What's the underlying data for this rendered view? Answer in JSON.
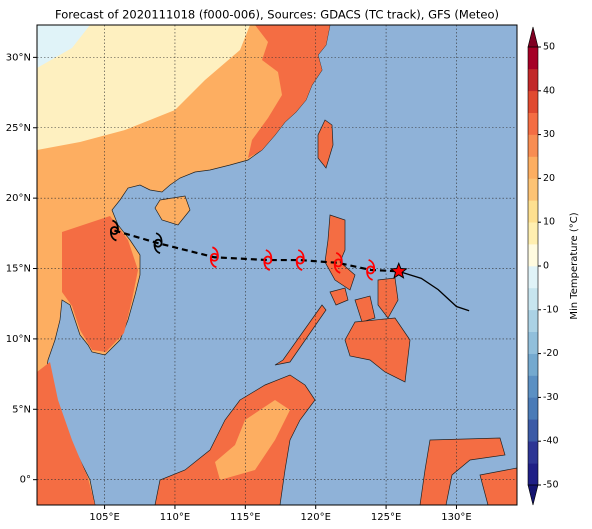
{
  "map": {
    "title": "Forecast of 2020111018 (f000-006), Sources: GDACS (TC track), GFS (Meteo)",
    "xlim": [
      100.2,
      134.3
    ],
    "ylim": [
      -1.8,
      32.3
    ],
    "xticks": [
      {
        "value": 105,
        "label": "105°E"
      },
      {
        "value": 110,
        "label": "110°E"
      },
      {
        "value": 115,
        "label": "115°E"
      },
      {
        "value": 120,
        "label": "120°E"
      },
      {
        "value": 125,
        "label": "125°E"
      },
      {
        "value": 130,
        "label": "130°E"
      }
    ],
    "yticks": [
      {
        "value": 0,
        "label": "0°"
      },
      {
        "value": 5,
        "label": "5°N"
      },
      {
        "value": 10,
        "label": "10°N"
      },
      {
        "value": 15,
        "label": "15°N"
      },
      {
        "value": 20,
        "label": "20°N"
      },
      {
        "value": 25,
        "label": "25°N"
      },
      {
        "value": 30,
        "label": "30°N"
      }
    ],
    "grid": true,
    "track": {
      "lon": [
        105.7,
        108.8,
        112.8,
        116.6,
        118.9,
        121.6,
        123.9
      ],
      "lat": [
        17.7,
        16.8,
        15.8,
        15.6,
        15.6,
        15.4,
        14.9
      ],
      "colors": [
        "#000000",
        "#000000",
        "#ff0000",
        "#ff0000",
        "#ff0000",
        "#ff0000",
        "#ff0000"
      ]
    },
    "current": {
      "lon": 125.9,
      "lat": 14.8,
      "color": "#ff0000"
    },
    "past_track": {
      "lon": [
        125.9,
        127.5,
        128.7,
        130.0,
        130.9
      ],
      "lat": [
        14.8,
        14.3,
        13.5,
        12.3,
        12.0
      ]
    },
    "colorbar": {
      "label": "Min Temperature (°C)",
      "lim": [
        -50,
        50
      ],
      "ticks": [
        -50,
        -40,
        -30,
        -20,
        -10,
        0,
        10,
        20,
        30,
        40,
        50
      ],
      "colors": [
        "#1f1f86",
        "#2d3594",
        "#3b5aa6",
        "#4a7bb7",
        "#5b90c3",
        "#74a9cf",
        "#91bfdb",
        "#abd2e5",
        "#c7e5ef",
        "#e0f3f8",
        "#fffbe0",
        "#ffefb0",
        "#fee090",
        "#fdc374",
        "#fdae61",
        "#f88d52",
        "#f46d43",
        "#e04a30",
        "#c2292a",
        "#a50026"
      ],
      "under": "#141470",
      "over": "#7f0022"
    }
  }
}
